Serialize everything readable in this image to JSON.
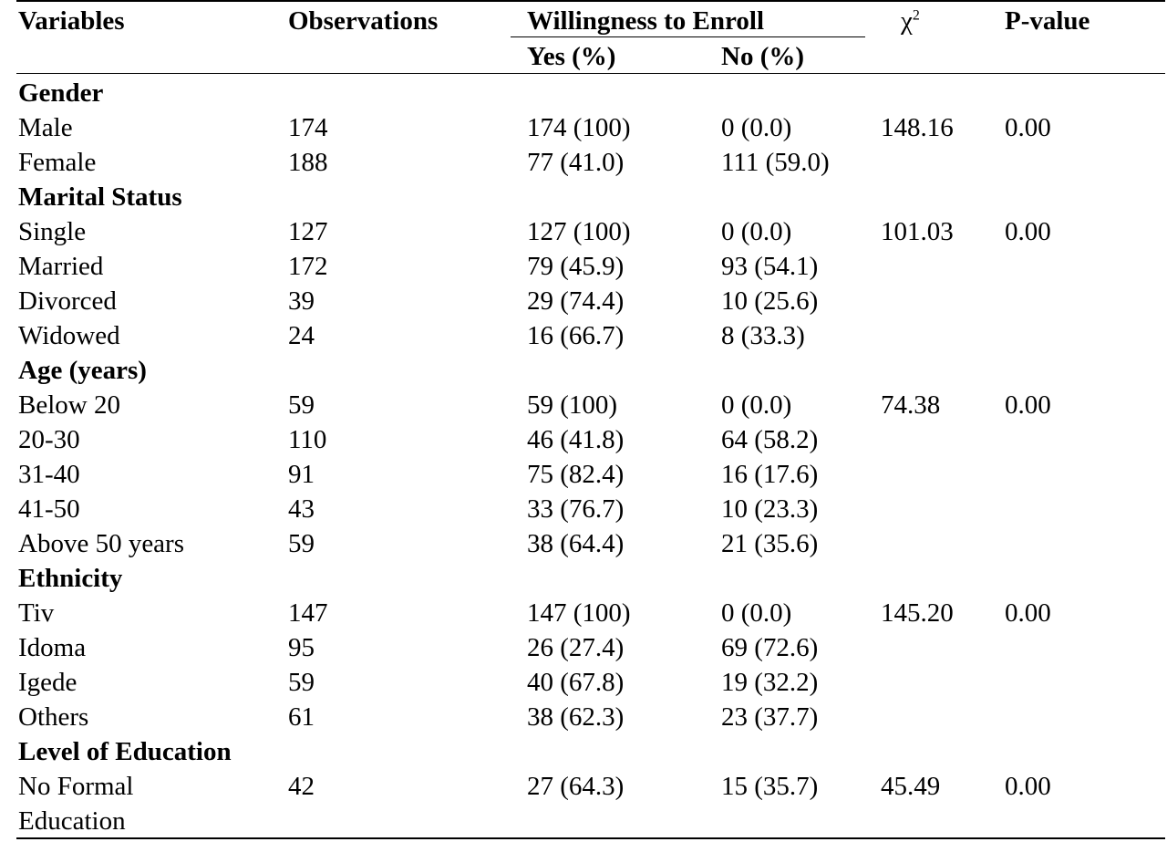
{
  "header": {
    "variables": "Variables",
    "observations": "Observations",
    "willingness": "Willingness to Enroll",
    "yes": "Yes (%)",
    "no": "No (%)",
    "chi_base": "χ",
    "chi_sup": "2",
    "pvalue": "P-value"
  },
  "rows": [
    {
      "type": "group",
      "label": "Gender"
    },
    {
      "type": "data",
      "label": "Male",
      "obs": "174",
      "yes": "174 (100)",
      "no": "0 (0.0)",
      "chi": "148.16",
      "p": "0.00"
    },
    {
      "type": "data",
      "label": "Female",
      "obs": "188",
      "yes": "77 (41.0)",
      "no": "111 (59.0)",
      "chi": "",
      "p": ""
    },
    {
      "type": "group",
      "label": "Marital Status"
    },
    {
      "type": "data",
      "label": "Single",
      "obs": "127",
      "yes": "127 (100)",
      "no": "0 (0.0)",
      "chi": "101.03",
      "p": "0.00"
    },
    {
      "type": "data",
      "label": "Married",
      "obs": "172",
      "yes": "79 (45.9)",
      "no": "93 (54.1)",
      "chi": "",
      "p": ""
    },
    {
      "type": "data",
      "label": "Divorced",
      "obs": "39",
      "yes": "29 (74.4)",
      "no": "10 (25.6)",
      "chi": "",
      "p": ""
    },
    {
      "type": "data",
      "label": "Widowed",
      "obs": "24",
      "yes": "16 (66.7)",
      "no": "8 (33.3)",
      "chi": "",
      "p": ""
    },
    {
      "type": "group",
      "label": "Age (years)"
    },
    {
      "type": "data",
      "label": "Below 20",
      "obs": "59",
      "yes": "59 (100)",
      "no": "0 (0.0)",
      "chi": "74.38",
      "p": "0.00"
    },
    {
      "type": "data",
      "label": "20-30",
      "obs": "110",
      "yes": "46 (41.8)",
      "no": "64 (58.2)",
      "chi": "",
      "p": ""
    },
    {
      "type": "data",
      "label": "31-40",
      "obs": "91",
      "yes": "75 (82.4)",
      "no": "16 (17.6)",
      "chi": "",
      "p": ""
    },
    {
      "type": "data",
      "label": "41-50",
      "obs": "43",
      "yes": "33 (76.7)",
      "no": "10 (23.3)",
      "chi": "",
      "p": ""
    },
    {
      "type": "data",
      "label": "Above 50 years",
      "obs": "59",
      "yes": "38 (64.4)",
      "no": "21 (35.6)",
      "chi": "",
      "p": ""
    },
    {
      "type": "group",
      "label": "Ethnicity"
    },
    {
      "type": "data",
      "label": "Tiv",
      "obs": "147",
      "yes": "147 (100)",
      "no": "0 (0.0)",
      "chi": "145.20",
      "p": "0.00"
    },
    {
      "type": "data",
      "label": "Idoma",
      "obs": "95",
      "yes": "26 (27.4)",
      "no": "69 (72.6)",
      "chi": "",
      "p": ""
    },
    {
      "type": "data",
      "label": "Igede",
      "obs": "59",
      "yes": "40 (67.8)",
      "no": "19 (32.2)",
      "chi": "",
      "p": ""
    },
    {
      "type": "data",
      "label": "Others",
      "obs": "61",
      "yes": "38 (62.3)",
      "no": "23 (37.7)",
      "chi": "",
      "p": ""
    },
    {
      "type": "group",
      "label": "Level of Education"
    },
    {
      "type": "data",
      "label": "No Formal",
      "obs": "42",
      "yes": "27 (64.3)",
      "no": "15 (35.7)",
      "chi": "45.49",
      "p": "0.00"
    },
    {
      "type": "data",
      "label": "Education",
      "obs": "",
      "yes": "",
      "no": "",
      "chi": "",
      "p": ""
    }
  ]
}
